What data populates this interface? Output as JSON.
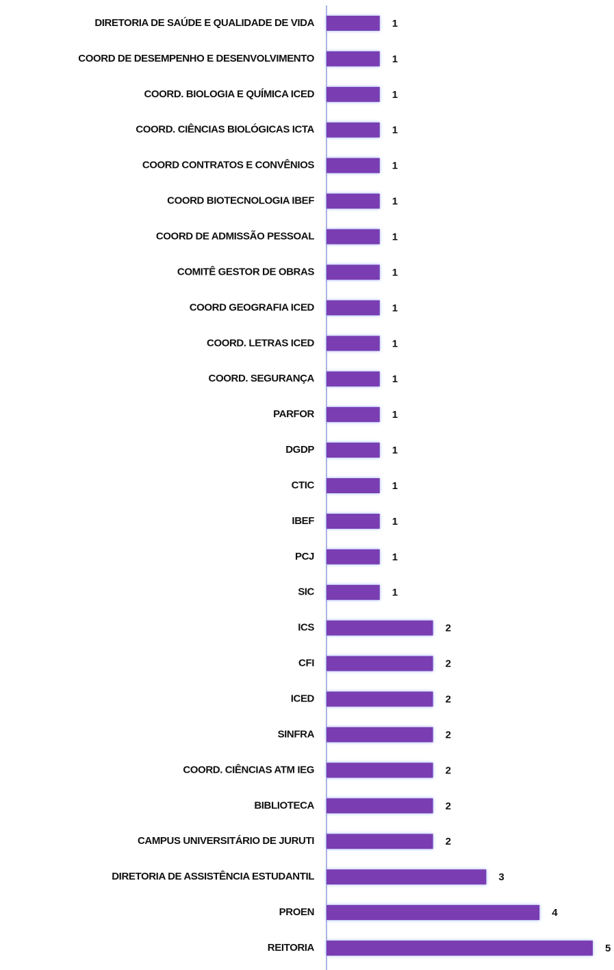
{
  "chart_data": {
    "type": "barh",
    "categories": [
      "DIRETORIA DE SAÚDE E QUALIDADE DE VIDA",
      "COORD DE DESEMPENHO  E DESENVOLVIMENTO",
      "COORD. BIOLOGIA E QUÍMICA ICED",
      "COORD. CIÊNCIAS BIOLÓGICAS ICTA",
      "COORD CONTRATOS E CONVÊNIOS",
      "COORD BIOTECNOLOGIA IBEF",
      "COORD DE ADMISSÃO PESSOAL",
      "COMITÊ GESTOR DE OBRAS",
      "COORD GEOGRAFIA ICED",
      "COORD. LETRAS ICED",
      "COORD. SEGURANÇA",
      "PARFOR",
      "DGDP",
      "CTIC",
      "IBEF",
      "PCJ",
      "SIC",
      "ICS",
      "CFI",
      "ICED",
      "SINFRA",
      "COORD. CIÊNCIAS ATM IEG",
      "BIBLIOTECA",
      "CAMPUS UNIVERSITÁRIO DE JURUTI",
      "DIRETORIA DE ASSISTÊNCIA ESTUDANTIL",
      "PROEN",
      "REITORIA"
    ],
    "values": [
      1,
      1,
      1,
      1,
      1,
      1,
      1,
      1,
      1,
      1,
      1,
      1,
      1,
      1,
      1,
      1,
      1,
      2,
      2,
      2,
      2,
      2,
      2,
      2,
      3,
      4,
      5
    ],
    "color": "#7a3db2",
    "xlim": [
      0,
      5
    ]
  }
}
